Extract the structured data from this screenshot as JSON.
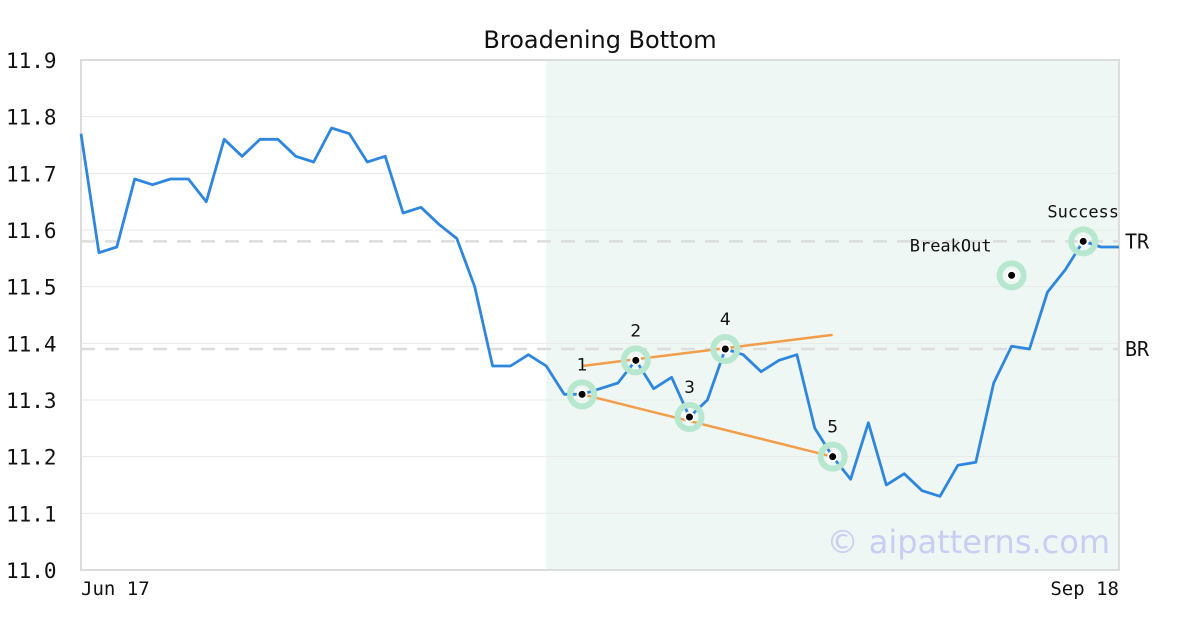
{
  "chart_data": {
    "type": "line",
    "title": "Broadening Bottom",
    "x_start_label": "Jun 17",
    "x_end_label": "Sep 18",
    "ylim": [
      11.0,
      11.9
    ],
    "yticks": [
      "11.0",
      "11.1",
      "11.2",
      "11.3",
      "11.4",
      "11.5",
      "11.6",
      "11.7",
      "11.8",
      "11.9"
    ],
    "grid": true,
    "series": [
      {
        "values": [
          11.77,
          11.56,
          11.57,
          11.69,
          11.68,
          11.69,
          11.69,
          11.65,
          11.76,
          11.73,
          11.76,
          11.76,
          11.73,
          11.72,
          11.78,
          11.77,
          11.72,
          11.73,
          11.63,
          11.64,
          11.61,
          11.585,
          11.5,
          11.36,
          11.36,
          11.38,
          11.36,
          11.31,
          11.31,
          11.32,
          11.33,
          11.37,
          11.32,
          11.34,
          11.27,
          11.3,
          11.39,
          11.38,
          11.35,
          11.37,
          11.38,
          11.25,
          11.2,
          11.16,
          11.26,
          11.15,
          11.17,
          11.14,
          11.13,
          11.185,
          11.19,
          11.33,
          11.395,
          11.39,
          11.49,
          11.53,
          11.58,
          11.57,
          11.57
        ]
      }
    ],
    "highlight_range": [
      26,
      58
    ],
    "levels": [
      {
        "label": "TR",
        "value": 11.58
      },
      {
        "label": "BR",
        "value": 11.39
      }
    ],
    "trendlines": [
      {
        "x1": 28,
        "y1": 11.36,
        "x2": 42,
        "y2": 11.415
      },
      {
        "x1": 28,
        "y1": 11.31,
        "x2": 42,
        "y2": 11.2
      }
    ],
    "points": [
      {
        "label": "1",
        "x": 28,
        "y": 11.31,
        "pos": "above"
      },
      {
        "label": "2",
        "x": 31,
        "y": 11.37,
        "pos": "above"
      },
      {
        "label": "3",
        "x": 34,
        "y": 11.27,
        "pos": "above"
      },
      {
        "label": "4",
        "x": 36,
        "y": 11.39,
        "pos": "above"
      },
      {
        "label": "5",
        "x": 42,
        "y": 11.2,
        "pos": "above"
      },
      {
        "label": "BreakOut",
        "x": 52,
        "y": 11.52,
        "pos": "left"
      },
      {
        "label": "Success",
        "x": 56,
        "y": 11.58,
        "pos": "above"
      }
    ],
    "watermark": "© aipatterns.com",
    "colors": {
      "line": "#2e86de",
      "trend": "#f39c4a",
      "highlight": "#eef7f3",
      "marker_ring": "#b7e8cf",
      "level": "#dddddd",
      "grid": "#e9e9e9",
      "frame": "#dcdcdc"
    }
  }
}
